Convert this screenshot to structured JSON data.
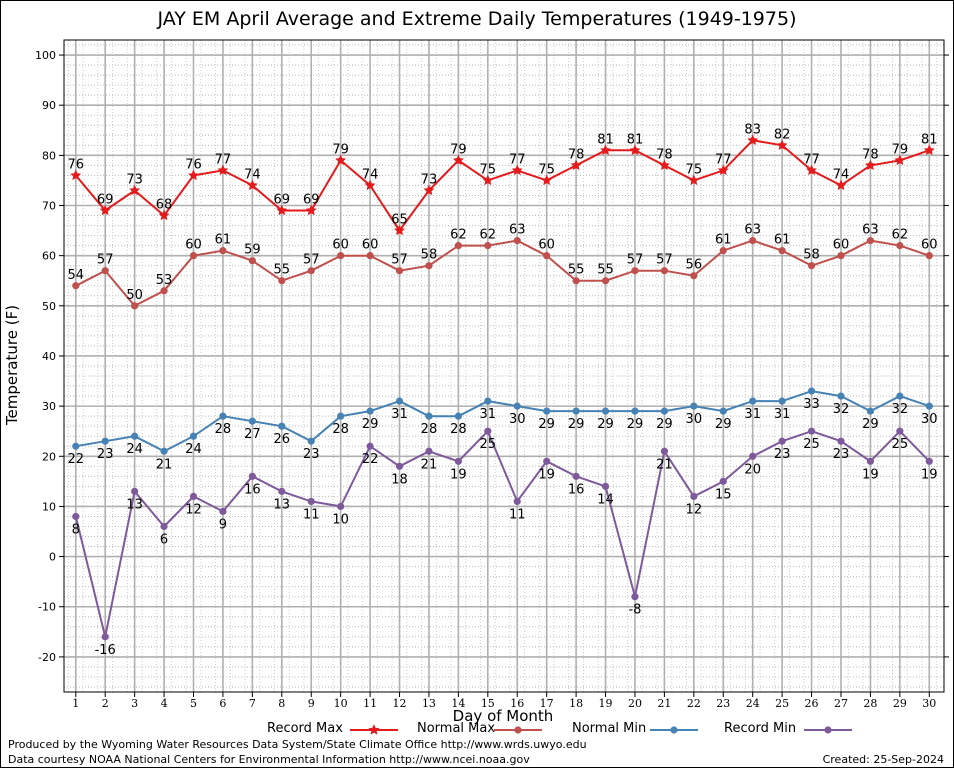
{
  "title": "JAY EM April Average and Extreme Daily Temperatures (1949-1975)",
  "footer": {
    "line1": "Produced by the Wyoming Water Resources Data System/State Climate Office http://www.wrds.uwyo.edu",
    "line2": "Data courtesy NOAA National Centers for Environmental Information http://www.ncei.noaa.gov",
    "created": "Created:  25-Sep-2024"
  },
  "chart_data": {
    "type": "line",
    "title": "JAY EM April Average and Extreme Daily Temperatures (1949-1975)",
    "xlabel": "Day of Month",
    "ylabel": "Temperature (F)",
    "xlim": [
      0.6,
      30.5
    ],
    "ylim": [
      -27,
      103
    ],
    "grid": true,
    "legend_position": "bottom",
    "y_ticks": [
      -20,
      -10,
      0,
      10,
      20,
      30,
      40,
      50,
      60,
      70,
      80,
      90,
      100
    ],
    "x": [
      1,
      2,
      3,
      4,
      5,
      6,
      7,
      8,
      9,
      10,
      11,
      12,
      13,
      14,
      15,
      16,
      17,
      18,
      19,
      20,
      21,
      22,
      23,
      24,
      25,
      26,
      27,
      28,
      29,
      30
    ],
    "series": [
      {
        "name": "Record Max",
        "color": "#e41a1c",
        "marker": "star",
        "values": [
          76,
          69,
          73,
          68,
          76,
          77,
          74,
          69,
          69,
          79,
          74,
          65,
          73,
          79,
          75,
          77,
          75,
          78,
          81,
          81,
          78,
          75,
          77,
          83,
          82,
          77,
          74,
          78,
          79,
          81
        ]
      },
      {
        "name": "Normal Max",
        "color": "#c0504d",
        "marker": "dot",
        "values": [
          54,
          57,
          50,
          53,
          60,
          61,
          59,
          55,
          57,
          60,
          60,
          57,
          58,
          62,
          62,
          63,
          60,
          55,
          55,
          57,
          57,
          56,
          61,
          63,
          61,
          58,
          60,
          63,
          62,
          60
        ]
      },
      {
        "name": "Normal Min",
        "color": "#4682b4",
        "marker": "dot",
        "values": [
          22,
          23,
          24,
          21,
          24,
          28,
          27,
          26,
          23,
          28,
          29,
          31,
          28,
          28,
          31,
          30,
          29,
          29,
          29,
          29,
          29,
          30,
          29,
          31,
          31,
          33,
          32,
          29,
          32,
          30
        ]
      },
      {
        "name": "Record Min",
        "color": "#7e5a9b",
        "marker": "dot",
        "values": [
          8,
          -16,
          13,
          6,
          12,
          9,
          16,
          13,
          11,
          10,
          22,
          18,
          21,
          19,
          25,
          11,
          19,
          16,
          14,
          -8,
          21,
          12,
          15,
          20,
          23,
          25,
          23,
          19,
          25,
          19
        ]
      }
    ]
  }
}
